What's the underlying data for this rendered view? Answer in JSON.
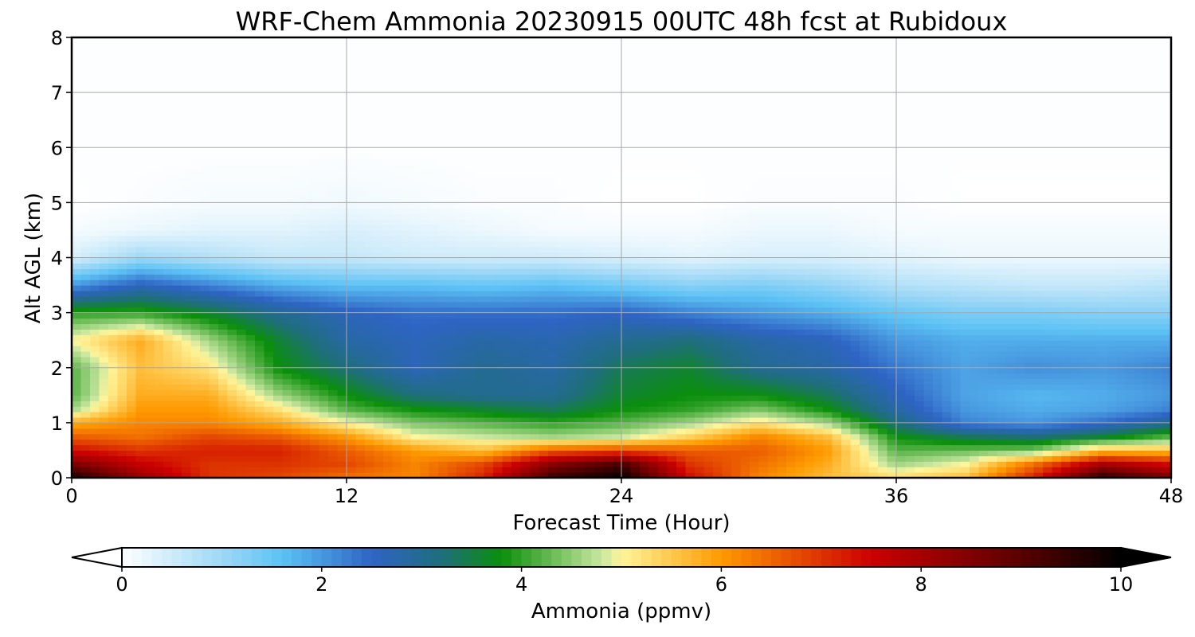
{
  "chart_data": {
    "type": "heatmap",
    "title": "WRF-Chem Ammonia  20230915 00UTC 48h fcst at Rubidoux",
    "xlabel": "Forecast Time (Hour)",
    "ylabel": "Alt AGL (km)",
    "xlim": [
      0,
      48
    ],
    "ylim": [
      0,
      8
    ],
    "x_ticks": [
      0,
      12,
      24,
      36,
      48
    ],
    "y_ticks": [
      0,
      1,
      2,
      3,
      4,
      5,
      6,
      7,
      8
    ],
    "grid": true,
    "colorbar": {
      "label": "Ammonia  (ppmv)",
      "range": [
        0,
        10
      ],
      "ticks": [
        0,
        2,
        4,
        6,
        8,
        10
      ],
      "extend": "both",
      "colors": [
        {
          "v": 0,
          "c": "#ffffff"
        },
        {
          "v": 1,
          "c": "#9ed8f6"
        },
        {
          "v": 1.6,
          "c": "#5cc2f5"
        },
        {
          "v": 2.5,
          "c": "#2e64c4"
        },
        {
          "v": 3.2,
          "c": "#1f6e7c"
        },
        {
          "v": 3.8,
          "c": "#0a8f0a"
        },
        {
          "v": 4.8,
          "c": "#c8e6a0"
        },
        {
          "v": 5.0,
          "c": "#fff59a"
        },
        {
          "v": 6.0,
          "c": "#ff9a00"
        },
        {
          "v": 7.5,
          "c": "#cc0000"
        },
        {
          "v": 9.0,
          "c": "#5a0000"
        },
        {
          "v": 10,
          "c": "#000000"
        }
      ]
    },
    "grid_x": [
      0,
      3,
      6,
      9,
      12,
      15,
      18,
      21,
      24,
      27,
      30,
      33,
      36,
      39,
      42,
      45,
      48
    ],
    "grid_y": [
      0,
      0.25,
      0.5,
      0.75,
      1,
      1.25,
      1.5,
      2,
      2.5,
      3,
      3.5,
      4,
      4.5,
      5,
      6,
      8
    ],
    "values": [
      [
        9.8,
        8.2,
        7.0,
        6.8,
        6.4,
        6.2,
        7.2,
        9.4,
        10.0,
        7.4,
        6.2,
        5.6,
        5.3,
        5.6,
        7.2,
        9.6,
        8.6
      ],
      [
        8.6,
        7.6,
        7.0,
        7.0,
        6.8,
        6.2,
        6.8,
        8.4,
        9.2,
        7.0,
        6.4,
        5.8,
        4.6,
        5.0,
        6.4,
        8.0,
        7.4
      ],
      [
        7.4,
        7.0,
        7.2,
        7.2,
        6.6,
        6.0,
        5.6,
        6.6,
        6.8,
        6.6,
        6.6,
        6.0,
        4.2,
        4.3,
        4.4,
        5.6,
        5.6
      ],
      [
        6.6,
        6.4,
        6.8,
        6.6,
        6.0,
        5.0,
        4.8,
        4.6,
        4.8,
        5.4,
        6.2,
        5.6,
        3.8,
        3.4,
        3.2,
        3.6,
        4.2
      ],
      [
        5.8,
        6.2,
        6.2,
        5.8,
        5.0,
        4.4,
        4.2,
        4.0,
        4.2,
        4.6,
        5.2,
        4.6,
        3.2,
        2.2,
        2.0,
        2.4,
        3.0
      ],
      [
        4.6,
        6.0,
        6.0,
        5.2,
        4.2,
        3.8,
        3.6,
        3.4,
        3.8,
        4.0,
        4.4,
        3.8,
        2.8,
        2.0,
        1.8,
        1.9,
        2.2
      ],
      [
        4.2,
        5.8,
        5.8,
        4.6,
        3.8,
        3.2,
        3.0,
        3.0,
        3.6,
        3.8,
        3.8,
        3.4,
        2.6,
        1.9,
        1.7,
        1.8,
        2.0
      ],
      [
        4.2,
        5.6,
        5.2,
        3.8,
        3.2,
        2.6,
        3.0,
        2.8,
        3.4,
        3.6,
        3.0,
        2.8,
        2.3,
        1.9,
        2.1,
        2.0,
        2.2
      ],
      [
        5.0,
        5.8,
        4.6,
        3.6,
        2.8,
        2.6,
        2.8,
        2.7,
        3.0,
        3.2,
        2.8,
        2.6,
        2.0,
        1.8,
        1.8,
        1.8,
        1.8
      ],
      [
        4.0,
        4.0,
        3.6,
        3.0,
        2.6,
        2.4,
        2.4,
        2.4,
        2.5,
        2.2,
        2.0,
        1.8,
        1.5,
        1.3,
        1.3,
        1.2,
        1.2
      ],
      [
        2.0,
        2.6,
        2.2,
        1.8,
        1.6,
        1.6,
        1.5,
        1.6,
        1.4,
        1.2,
        1.3,
        1.1,
        0.8,
        0.7,
        0.6,
        0.6,
        0.7
      ],
      [
        0.4,
        1.0,
        0.8,
        0.6,
        0.6,
        0.5,
        0.5,
        0.5,
        0.4,
        0.3,
        0.4,
        0.4,
        0.3,
        0.2,
        0.2,
        0.2,
        0.2
      ],
      [
        0.1,
        0.2,
        0.3,
        0.3,
        0.4,
        0.3,
        0.2,
        0.1,
        0.1,
        0.1,
        0.2,
        0.2,
        0.1,
        0.1,
        0.1,
        0.1,
        0.1
      ],
      [
        0.0,
        0.05,
        0.1,
        0.1,
        0.15,
        0.1,
        0.05,
        0.05,
        0.0,
        0.0,
        0.05,
        0.05,
        0.05,
        0.0,
        0.0,
        0.0,
        0.0
      ],
      [
        0.02,
        0.02,
        0.02,
        0.02,
        0.02,
        0.02,
        0.02,
        0.02,
        0.02,
        0.02,
        0.02,
        0.02,
        0.02,
        0.02,
        0.02,
        0.02,
        0.02
      ],
      [
        0.02,
        0.02,
        0.02,
        0.02,
        0.02,
        0.02,
        0.02,
        0.02,
        0.02,
        0.02,
        0.02,
        0.02,
        0.02,
        0.02,
        0.02,
        0.02,
        0.02
      ]
    ]
  }
}
